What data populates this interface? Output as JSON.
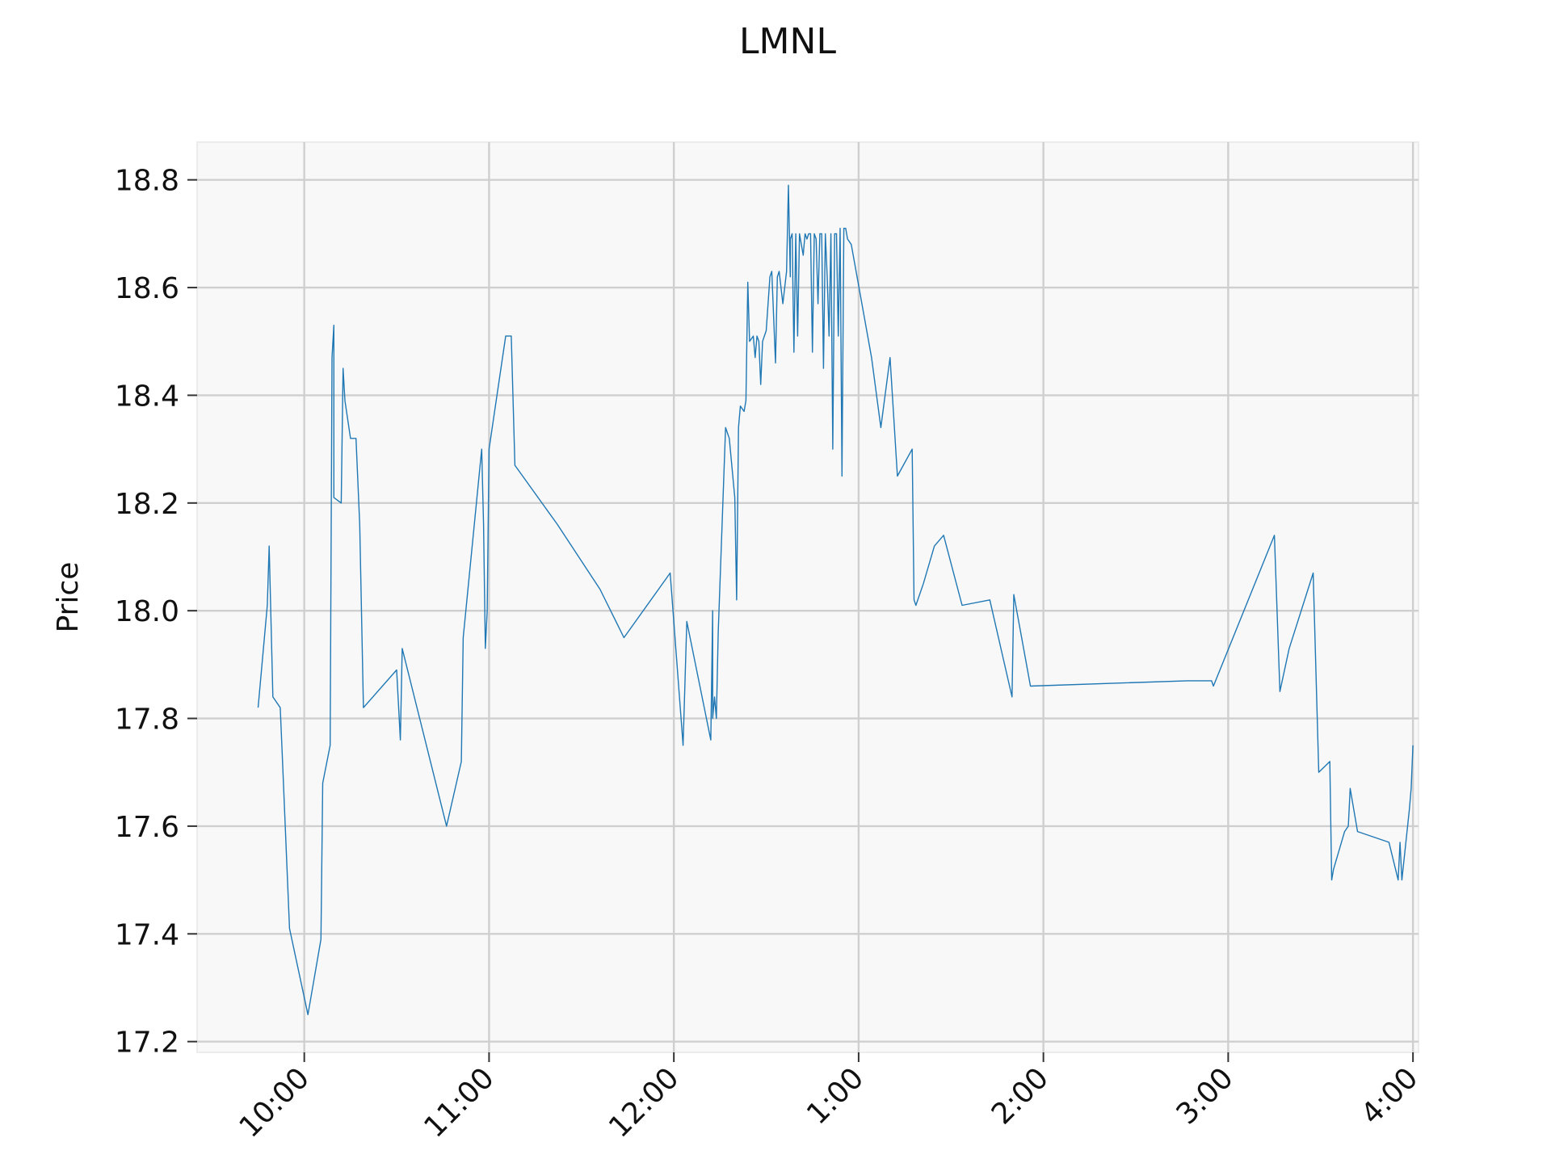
{
  "chart_data": {
    "type": "line",
    "title": "LMNL",
    "xlabel": "",
    "ylabel": "Price",
    "x_unit": "hours since midnight (9:45 AM to 4:00 PM trading session)",
    "xlim": [
      9.42,
      16.03
    ],
    "ylim": [
      17.18,
      18.87
    ],
    "grid": true,
    "x_ticks": [
      {
        "value": 10,
        "label": "10:00"
      },
      {
        "value": 11,
        "label": "11:00"
      },
      {
        "value": 12,
        "label": "12:00"
      },
      {
        "value": 13,
        "label": "1:00"
      },
      {
        "value": 14,
        "label": "2:00"
      },
      {
        "value": 15,
        "label": "3:00"
      },
      {
        "value": 16,
        "label": "4:00"
      }
    ],
    "y_ticks": [
      {
        "value": 17.2,
        "label": "17.2"
      },
      {
        "value": 17.4,
        "label": "17.4"
      },
      {
        "value": 17.6,
        "label": "17.6"
      },
      {
        "value": 17.8,
        "label": "17.8"
      },
      {
        "value": 18.0,
        "label": "18.0"
      },
      {
        "value": 18.2,
        "label": "18.2"
      },
      {
        "value": 18.4,
        "label": "18.4"
      },
      {
        "value": 18.6,
        "label": "18.6"
      },
      {
        "value": 18.8,
        "label": "18.8"
      }
    ],
    "series": [
      {
        "color": "#1f77b4",
        "x": [
          9.75,
          9.8,
          9.81,
          9.83,
          9.87,
          9.88,
          9.92,
          10.02,
          10.09,
          10.1,
          10.14,
          10.15,
          10.16,
          10.16,
          10.2,
          10.21,
          10.22,
          10.25,
          10.28,
          10.3,
          10.32,
          10.5,
          10.52,
          10.53,
          10.77,
          10.85,
          10.86,
          10.96,
          10.97,
          10.98,
          10.99,
          11.0,
          11.09,
          11.12,
          11.14,
          11.37,
          11.6,
          11.73,
          11.98,
          12.05,
          12.07,
          12.2,
          12.21,
          12.21,
          12.22,
          12.23,
          12.24,
          12.28,
          12.3,
          12.33,
          12.34,
          12.35,
          12.36,
          12.38,
          12.39,
          12.4,
          12.41,
          12.41,
          12.43,
          12.44,
          12.45,
          12.46,
          12.47,
          12.48,
          12.5,
          12.52,
          12.53,
          12.55,
          12.56,
          12.57,
          12.59,
          12.61,
          12.62,
          12.63,
          12.63,
          12.64,
          12.65,
          12.66,
          12.67,
          12.68,
          12.69,
          12.7,
          12.71,
          12.72,
          12.73,
          12.74,
          12.75,
          12.76,
          12.77,
          12.78,
          12.79,
          12.8,
          12.81,
          12.82,
          12.83,
          12.84,
          12.85,
          12.86,
          12.87,
          12.88,
          12.89,
          12.9,
          12.91,
          12.92,
          12.93,
          12.94,
          12.96,
          13.07,
          13.12,
          13.17,
          13.21,
          13.29,
          13.3,
          13.31,
          13.35,
          13.41,
          13.46,
          13.56,
          13.71,
          13.83,
          13.84,
          13.93,
          14.78,
          14.91,
          14.92,
          15.25,
          15.28,
          15.33,
          15.46,
          15.49,
          15.55,
          15.56,
          15.57,
          15.63,
          15.65,
          15.66,
          15.7,
          15.87,
          15.92,
          15.93,
          15.94,
          15.98,
          15.99,
          16.0
        ],
        "y": [
          17.82,
          18.01,
          18.12,
          17.84,
          17.82,
          17.74,
          17.41,
          17.25,
          17.39,
          17.68,
          17.75,
          18.47,
          18.53,
          18.21,
          18.2,
          18.45,
          18.39,
          18.32,
          18.32,
          18.16,
          17.82,
          17.89,
          17.76,
          17.93,
          17.6,
          17.72,
          17.95,
          18.3,
          18.16,
          17.93,
          18.0,
          18.3,
          18.51,
          18.51,
          18.27,
          18.16,
          18.04,
          17.95,
          18.07,
          17.75,
          17.98,
          17.76,
          18.0,
          17.8,
          17.84,
          17.8,
          17.96,
          18.34,
          18.32,
          18.21,
          18.02,
          18.34,
          18.38,
          18.37,
          18.39,
          18.61,
          18.5,
          18.5,
          18.51,
          18.47,
          18.51,
          18.5,
          18.42,
          18.5,
          18.52,
          18.62,
          18.63,
          18.46,
          18.62,
          18.63,
          18.57,
          18.63,
          18.79,
          18.62,
          18.69,
          18.7,
          18.48,
          18.7,
          18.51,
          18.7,
          18.68,
          18.66,
          18.7,
          18.69,
          18.7,
          18.7,
          18.48,
          18.7,
          18.69,
          18.57,
          18.7,
          18.7,
          18.45,
          18.7,
          18.62,
          18.51,
          18.7,
          18.3,
          18.7,
          18.7,
          18.51,
          18.71,
          18.25,
          18.71,
          18.71,
          18.69,
          18.68,
          18.47,
          18.34,
          18.47,
          18.25,
          18.3,
          18.02,
          18.01,
          18.05,
          18.12,
          18.14,
          18.01,
          18.02,
          17.84,
          18.03,
          17.86,
          17.87,
          17.87,
          17.86,
          18.14,
          17.85,
          17.93,
          18.07,
          17.7,
          17.72,
          17.5,
          17.52,
          17.59,
          17.6,
          17.67,
          17.59,
          17.57,
          17.5,
          17.57,
          17.5,
          17.63,
          17.67,
          17.75
        ]
      }
    ]
  }
}
